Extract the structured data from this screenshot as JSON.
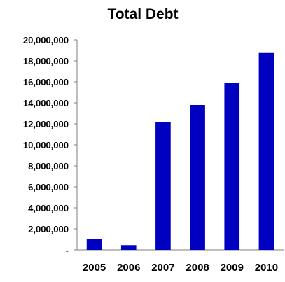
{
  "chart_data": {
    "type": "bar",
    "title": "Total Debt",
    "xlabel": "",
    "ylabel": "",
    "categories": [
      "2005",
      "2006",
      "2007",
      "2008",
      "2009",
      "2010"
    ],
    "values": [
      1050000,
      450000,
      12200000,
      13800000,
      15900000,
      18750000
    ],
    "ylim": [
      0,
      20000000
    ],
    "yticks": [
      0,
      2000000,
      4000000,
      6000000,
      8000000,
      10000000,
      12000000,
      14000000,
      16000000,
      18000000,
      20000000
    ],
    "ytick_labels": [
      "-",
      "2,000,000",
      "4,000,000",
      "6,000,000",
      "8,000,000",
      "10,000,000",
      "12,000,000",
      "14,000,000",
      "16,000,000",
      "18,000,000",
      "20,000,000"
    ],
    "grid": false,
    "legend": "none",
    "bar_color": "#0000c0",
    "axis_color": "#7f7f7f"
  }
}
